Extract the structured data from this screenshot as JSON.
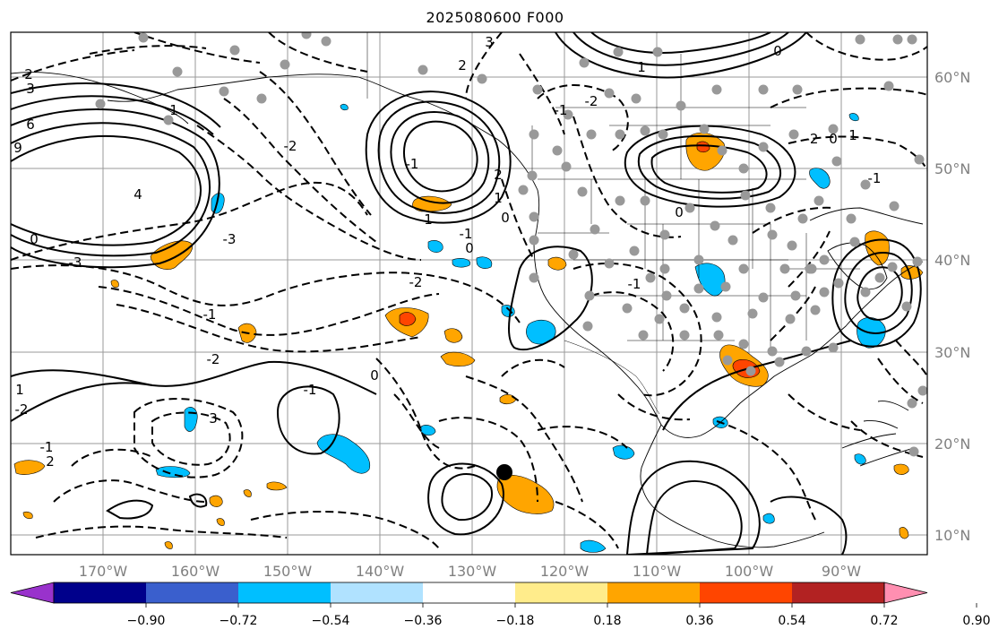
{
  "title": "2025080600 F000",
  "lon_ticks": [
    "170°W",
    "160°W",
    "150°W",
    "140°W",
    "130°W",
    "120°W",
    "110°W",
    "100°W",
    "90°W"
  ],
  "lat_ticks": [
    "60°N",
    "50°N",
    "40°N",
    "30°N",
    "20°N",
    "10°N"
  ],
  "colorbar": {
    "labels": [
      "−0.90",
      "−0.72",
      "−0.54",
      "−0.36",
      "−0.18",
      "0.18",
      "0.36",
      "0.54",
      "0.72",
      "0.90"
    ],
    "colors": [
      "#9932cc",
      "#00008b",
      "#3a5fcd",
      "#00bfff",
      "#b0e2ff",
      "#ffffff",
      "#ffec8b",
      "#ffa500",
      "#ff4500",
      "#b22222",
      "#ff8fb1"
    ]
  },
  "contour_labels": [
    {
      "text": "2"
    },
    {
      "text": "3"
    },
    {
      "text": "6"
    },
    {
      "text": "9"
    },
    {
      "text": "4"
    },
    {
      "text": "1"
    },
    {
      "text": "0"
    },
    {
      "text": "-3"
    },
    {
      "text": "-2"
    },
    {
      "text": "-1"
    },
    {
      "text": "3"
    },
    {
      "text": "2"
    },
    {
      "text": "1"
    },
    {
      "text": "0"
    },
    {
      "text": "-2"
    },
    {
      "text": "-1"
    },
    {
      "text": "-2"
    },
    {
      "text": "0"
    },
    {
      "text": "1"
    },
    {
      "text": "-1"
    },
    {
      "text": "0"
    },
    {
      "text": "1"
    },
    {
      "text": "-1"
    },
    {
      "text": "2"
    },
    {
      "text": "-2"
    },
    {
      "text": "0"
    },
    {
      "text": "1"
    },
    {
      "text": "-1"
    },
    {
      "text": "0"
    },
    {
      "text": "-1"
    },
    {
      "text": "-2"
    },
    {
      "text": "3"
    },
    {
      "text": "-1"
    },
    {
      "text": "0"
    },
    {
      "text": "-3"
    },
    {
      "text": "-2"
    },
    {
      "text": "1"
    },
    {
      "text": "-1"
    },
    {
      "text": "2"
    }
  ],
  "colors": {
    "frame": "#000000",
    "grid": "#9a9a9a",
    "coast": "#000000",
    "point": "#999999",
    "marker": "#000000",
    "blue_anom": "#00bfff",
    "orange_anom": "#ffa500",
    "red_anom": "#ff4500"
  }
}
